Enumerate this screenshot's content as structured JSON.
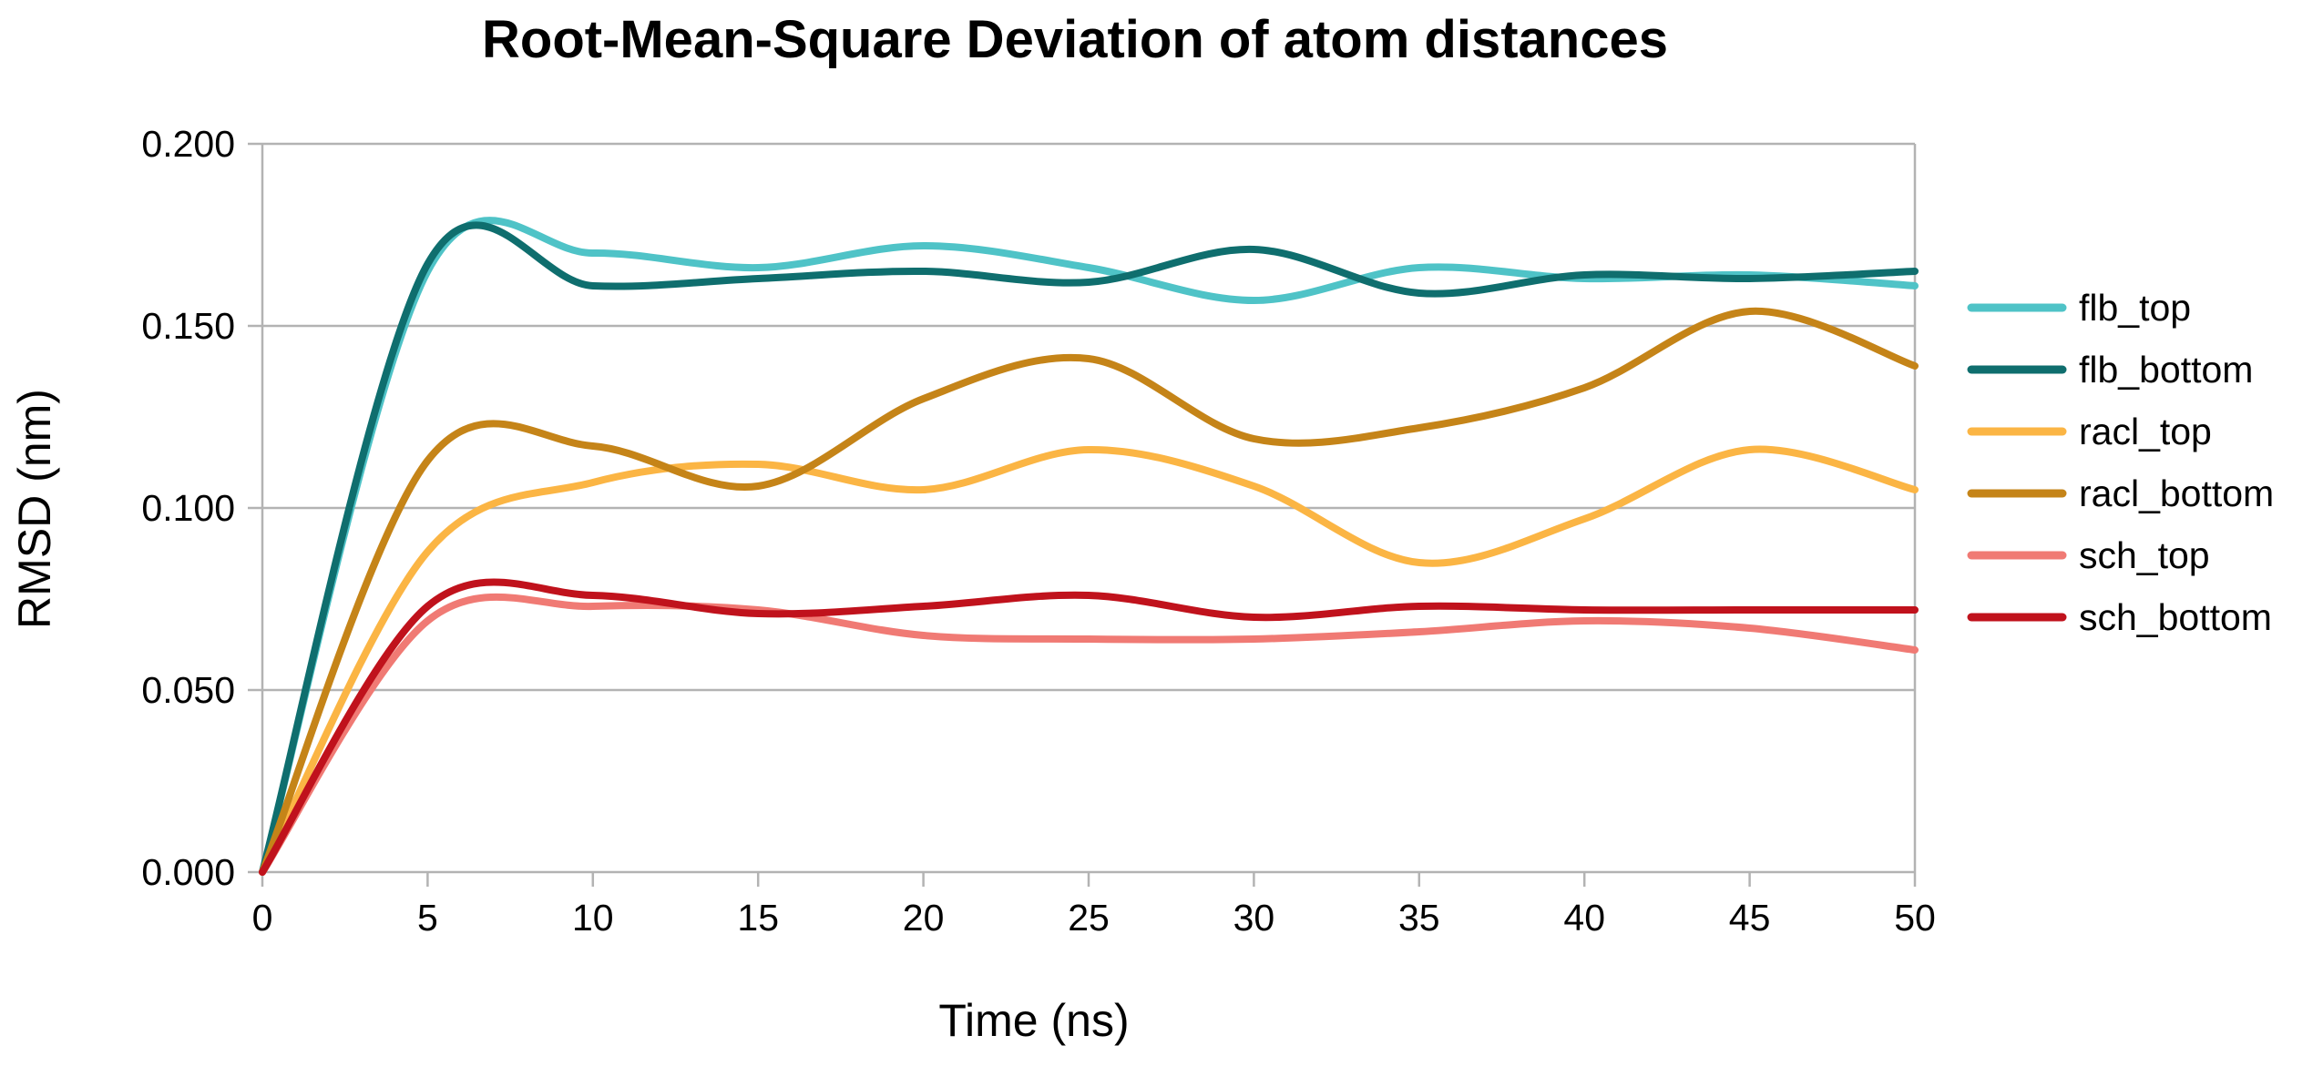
{
  "chart_data": {
    "type": "line",
    "title": "Root-Mean-Square Deviation of atom distances",
    "xlabel": "Time (ns)",
    "ylabel": "RMSD (nm)",
    "xlim": [
      0,
      50
    ],
    "ylim": [
      0,
      0.2
    ],
    "x_ticks": [
      0,
      5,
      10,
      15,
      20,
      25,
      30,
      35,
      40,
      45,
      50
    ],
    "x_tick_labels": [
      "0",
      "5",
      "10",
      "15",
      "20",
      "25",
      "30",
      "35",
      "40",
      "45",
      "50"
    ],
    "y_ticks": [
      0,
      0.05,
      0.1,
      0.15,
      0.2
    ],
    "y_tick_labels": [
      "0.000",
      "0.050",
      "0.100",
      "0.150",
      "0.200"
    ],
    "grid": "horizontal",
    "legend_position": "right",
    "x": [
      0,
      5,
      10,
      15,
      20,
      25,
      30,
      35,
      40,
      45,
      50
    ],
    "series": [
      {
        "name": "flb_top",
        "color": "#4fc3c7",
        "values": [
          0,
          0.165,
          0.17,
          0.166,
          0.172,
          0.166,
          0.157,
          0.166,
          0.163,
          0.164,
          0.161
        ]
      },
      {
        "name": "flb_bottom",
        "color": "#0f6e6e",
        "values": [
          0,
          0.167,
          0.161,
          0.163,
          0.165,
          0.162,
          0.171,
          0.159,
          0.164,
          0.163,
          0.165
        ]
      },
      {
        "name": "racl_top",
        "color": "#fbb544",
        "values": [
          0,
          0.088,
          0.107,
          0.112,
          0.105,
          0.116,
          0.106,
          0.085,
          0.097,
          0.116,
          0.105
        ]
      },
      {
        "name": "racl_bottom",
        "color": "#c58418",
        "values": [
          0,
          0.113,
          0.117,
          0.106,
          0.13,
          0.141,
          0.119,
          0.122,
          0.133,
          0.154,
          0.139
        ]
      },
      {
        "name": "sch_top",
        "color": "#f07a74",
        "values": [
          0,
          0.069,
          0.073,
          0.072,
          0.065,
          0.064,
          0.064,
          0.066,
          0.069,
          0.067,
          0.061
        ]
      },
      {
        "name": "sch_bottom",
        "color": "#c0121c",
        "values": [
          0,
          0.073,
          0.076,
          0.071,
          0.073,
          0.076,
          0.07,
          0.073,
          0.072,
          0.072,
          0.072
        ]
      }
    ]
  }
}
